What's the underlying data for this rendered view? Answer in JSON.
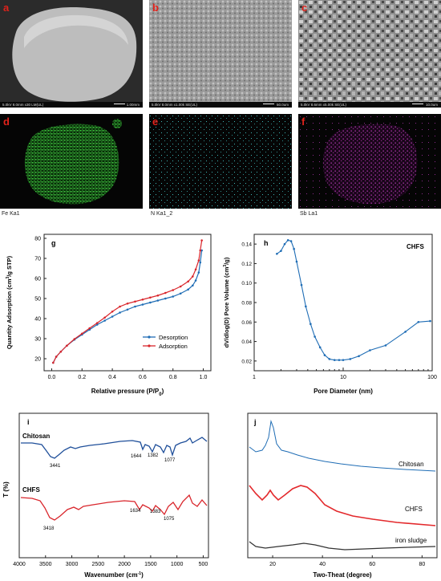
{
  "sem_panels": [
    {
      "label": "a",
      "info": "5.0kV 8.0mm x30 LM(UL)",
      "scale": "1.00mm"
    },
    {
      "label": "b",
      "info": "5.0kV 8.0mm x1.00k SE(UL)",
      "scale": "50.0um"
    },
    {
      "label": "c",
      "info": "5.0kV 8.6mm x5.00k SE(UL)",
      "scale": "10.0um"
    }
  ],
  "map_panels": [
    {
      "label": "d",
      "caption": "Fe Ka1",
      "color": "#3bd23b"
    },
    {
      "label": "e",
      "caption": "N Ka1_2",
      "color": "#3fb8b8"
    },
    {
      "label": "f",
      "caption": "Sb La1",
      "color": "#c23cc2"
    }
  ],
  "chart_data": [
    {
      "panel": "g",
      "type": "line",
      "xlabel": "Relative pressure (P/P0)",
      "ylabel": "Quantity Adsorption (cm3/g STP)",
      "xlim": [
        -0.05,
        1.05
      ],
      "ylim": [
        14,
        82
      ],
      "xticks": [
        "0.0",
        "0.2",
        "0.4",
        "0.6",
        "0.8",
        "1.0"
      ],
      "yticks": [
        "20",
        "30",
        "40",
        "50",
        "60",
        "70",
        "80"
      ],
      "legend_position": "bottom-right",
      "series": [
        {
          "name": "Desorption",
          "color": "#1f6db5",
          "x": [
            0.01,
            0.03,
            0.06,
            0.1,
            0.15,
            0.2,
            0.25,
            0.3,
            0.35,
            0.4,
            0.45,
            0.5,
            0.55,
            0.6,
            0.65,
            0.7,
            0.75,
            0.8,
            0.85,
            0.9,
            0.93,
            0.95,
            0.97,
            0.98,
            0.99
          ],
          "y": [
            18,
            21,
            23.5,
            26.5,
            29.5,
            32,
            34.5,
            37,
            39,
            41,
            43,
            44.5,
            46,
            47,
            48,
            49,
            50,
            51,
            52.5,
            54.5,
            56.5,
            59,
            63,
            68,
            74
          ]
        },
        {
          "name": "Adsorption",
          "color": "#d9262c",
          "x": [
            0.01,
            0.03,
            0.06,
            0.1,
            0.15,
            0.2,
            0.25,
            0.3,
            0.35,
            0.4,
            0.45,
            0.5,
            0.55,
            0.6,
            0.65,
            0.7,
            0.75,
            0.8,
            0.85,
            0.9,
            0.93,
            0.95,
            0.97,
            0.98,
            0.99
          ],
          "y": [
            18,
            21,
            23.5,
            26.5,
            29.8,
            32.5,
            35.2,
            37.8,
            40.5,
            43.5,
            46,
            47.5,
            48.5,
            49.5,
            50.5,
            51.5,
            52.8,
            54.2,
            56,
            58.5,
            61,
            64.5,
            69,
            74,
            79
          ]
        }
      ]
    },
    {
      "panel": "h",
      "type": "line",
      "log_x": true,
      "xlabel": "Pore Diameter (nm)",
      "ylabel": "dV/dlog(D) Pore Volume (cm3/g)",
      "annotation": "CHFS",
      "xlim": [
        1,
        100
      ],
      "ylim": [
        0.01,
        0.15
      ],
      "xticks": [
        "1",
        "10",
        "100"
      ],
      "yticks": [
        "0.02",
        "0.04",
        "0.06",
        "0.08",
        "0.10",
        "0.12",
        "0.14"
      ],
      "series": [
        {
          "name": "",
          "color": "#1f6db5",
          "x": [
            1.8,
            2.0,
            2.2,
            2.4,
            2.6,
            2.8,
            3.0,
            3.4,
            3.8,
            4.3,
            4.8,
            5.5,
            6.2,
            7,
            8,
            9,
            10,
            12,
            15,
            20,
            30,
            50,
            70,
            95
          ],
          "y": [
            0.13,
            0.133,
            0.14,
            0.144,
            0.143,
            0.135,
            0.122,
            0.098,
            0.076,
            0.058,
            0.045,
            0.034,
            0.026,
            0.022,
            0.021,
            0.021,
            0.021,
            0.022,
            0.025,
            0.031,
            0.036,
            0.05,
            0.06,
            0.061
          ]
        }
      ]
    },
    {
      "panel": "i",
      "type": "line",
      "xlabel": "Wavenumber (cm-1)",
      "ylabel": "T (%)",
      "xlim": [
        4000,
        400
      ],
      "xticks": [
        "4000",
        "3500",
        "3000",
        "2500",
        "2000",
        "1500",
        "1000",
        "500"
      ],
      "series": [
        {
          "name": "Chitosan",
          "color": "#1f4f9a",
          "peaks": [
            "3441",
            "1644",
            "1382",
            "1077"
          ]
        },
        {
          "name": "CHFS",
          "color": "#d9262c",
          "peaks": [
            "3418",
            "1634",
            "1383",
            "1075"
          ]
        }
      ]
    },
    {
      "panel": "j",
      "type": "line",
      "xlabel": "Two-Theat (degree)",
      "xticks": [
        "20",
        "40",
        "60",
        "80"
      ],
      "xlim": [
        10,
        86
      ],
      "series": [
        {
          "name": "Chitosan",
          "color": "#1f6db5"
        },
        {
          "name": "CHFS",
          "color": "#e3292c"
        },
        {
          "name": "iron sludge",
          "color": "#333333"
        }
      ]
    }
  ]
}
